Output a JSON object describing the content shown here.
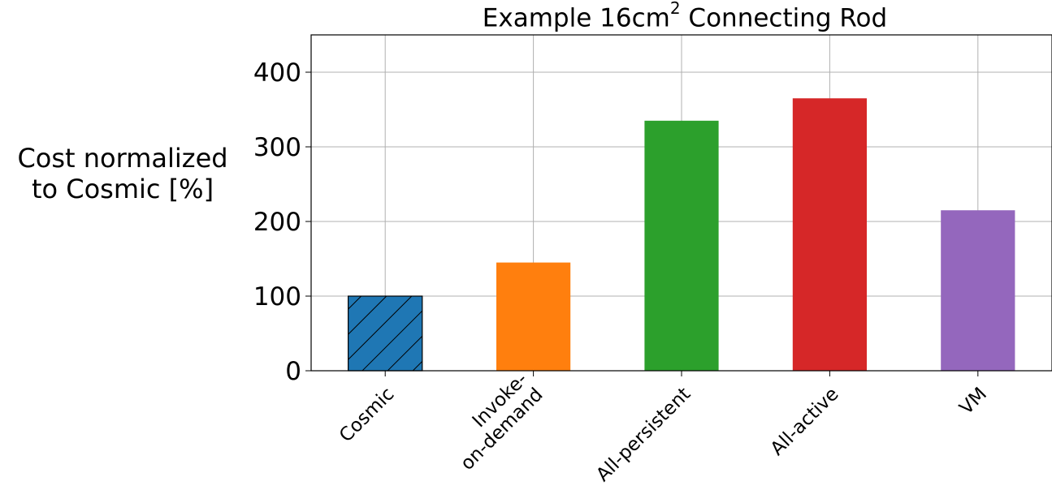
{
  "chart_data": {
    "type": "bar",
    "title": "Example 16cm",
    "title_superscript": "2",
    "title_suffix": " Connecting Rod",
    "ylabel_lines": [
      "Cost normalized",
      "to Cosmic [%]"
    ],
    "xlabel": "",
    "categories": [
      "Cosmic",
      "Invoke-\non-demand",
      "All-persistent",
      "All-active",
      "VM"
    ],
    "values": [
      100,
      145,
      335,
      365,
      215
    ],
    "colors": [
      "#1f77b4",
      "#ff7f0e",
      "#2ca02c",
      "#d62728",
      "#9467bd"
    ],
    "hatched": [
      true,
      false,
      false,
      false,
      false
    ],
    "yticks": [
      0,
      100,
      200,
      300,
      400
    ],
    "ylim": [
      0,
      450
    ],
    "grid": true
  }
}
